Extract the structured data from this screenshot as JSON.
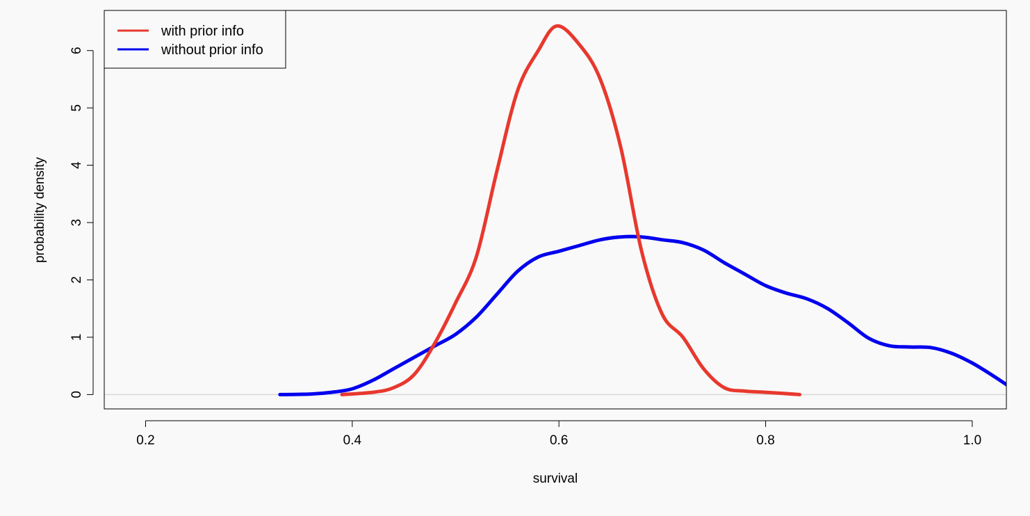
{
  "chart_data": {
    "type": "line",
    "xlabel": "survival",
    "ylabel": "probability density",
    "xlim": [
      0.16,
      1.033
    ],
    "ylim": [
      -0.25,
      6.7
    ],
    "x_ticks": [
      0.2,
      0.4,
      0.6,
      0.8,
      1.0
    ],
    "x_tick_labels": [
      "0.2",
      "0.4",
      "0.6",
      "0.8",
      "1.0"
    ],
    "y_ticks": [
      0,
      1,
      2,
      3,
      4,
      5,
      6
    ],
    "y_tick_labels": [
      "0",
      "1",
      "2",
      "3",
      "4",
      "5",
      "6"
    ],
    "baseline": 0,
    "legend": {
      "position": "top-left",
      "entries": [
        "with prior info",
        "without prior info"
      ]
    },
    "series": [
      {
        "name": "with prior info",
        "color": "#e8382e",
        "points": [
          [
            0.39,
            0.0
          ],
          [
            0.42,
            0.04
          ],
          [
            0.44,
            0.12
          ],
          [
            0.46,
            0.35
          ],
          [
            0.48,
            0.9
          ],
          [
            0.5,
            1.6
          ],
          [
            0.52,
            2.4
          ],
          [
            0.54,
            3.9
          ],
          [
            0.56,
            5.3
          ],
          [
            0.58,
            6.0
          ],
          [
            0.598,
            6.43
          ],
          [
            0.62,
            6.1
          ],
          [
            0.64,
            5.5
          ],
          [
            0.66,
            4.3
          ],
          [
            0.68,
            2.5
          ],
          [
            0.7,
            1.4
          ],
          [
            0.72,
            1.0
          ],
          [
            0.74,
            0.45
          ],
          [
            0.76,
            0.12
          ],
          [
            0.78,
            0.06
          ],
          [
            0.8,
            0.04
          ],
          [
            0.833,
            0.0
          ]
        ]
      },
      {
        "name": "without prior info",
        "color": "#0000ee",
        "points": [
          [
            0.33,
            0.0
          ],
          [
            0.36,
            0.01
          ],
          [
            0.38,
            0.04
          ],
          [
            0.4,
            0.1
          ],
          [
            0.42,
            0.25
          ],
          [
            0.44,
            0.45
          ],
          [
            0.46,
            0.65
          ],
          [
            0.48,
            0.85
          ],
          [
            0.5,
            1.05
          ],
          [
            0.52,
            1.35
          ],
          [
            0.54,
            1.75
          ],
          [
            0.56,
            2.15
          ],
          [
            0.58,
            2.4
          ],
          [
            0.6,
            2.5
          ],
          [
            0.62,
            2.6
          ],
          [
            0.64,
            2.7
          ],
          [
            0.66,
            2.75
          ],
          [
            0.68,
            2.75
          ],
          [
            0.7,
            2.7
          ],
          [
            0.72,
            2.65
          ],
          [
            0.74,
            2.52
          ],
          [
            0.76,
            2.3
          ],
          [
            0.78,
            2.1
          ],
          [
            0.8,
            1.9
          ],
          [
            0.82,
            1.77
          ],
          [
            0.84,
            1.67
          ],
          [
            0.86,
            1.5
          ],
          [
            0.88,
            1.25
          ],
          [
            0.9,
            0.98
          ],
          [
            0.92,
            0.85
          ],
          [
            0.94,
            0.83
          ],
          [
            0.96,
            0.82
          ],
          [
            0.98,
            0.72
          ],
          [
            1.0,
            0.55
          ],
          [
            1.02,
            0.33
          ],
          [
            1.035,
            0.15
          ]
        ]
      }
    ]
  }
}
